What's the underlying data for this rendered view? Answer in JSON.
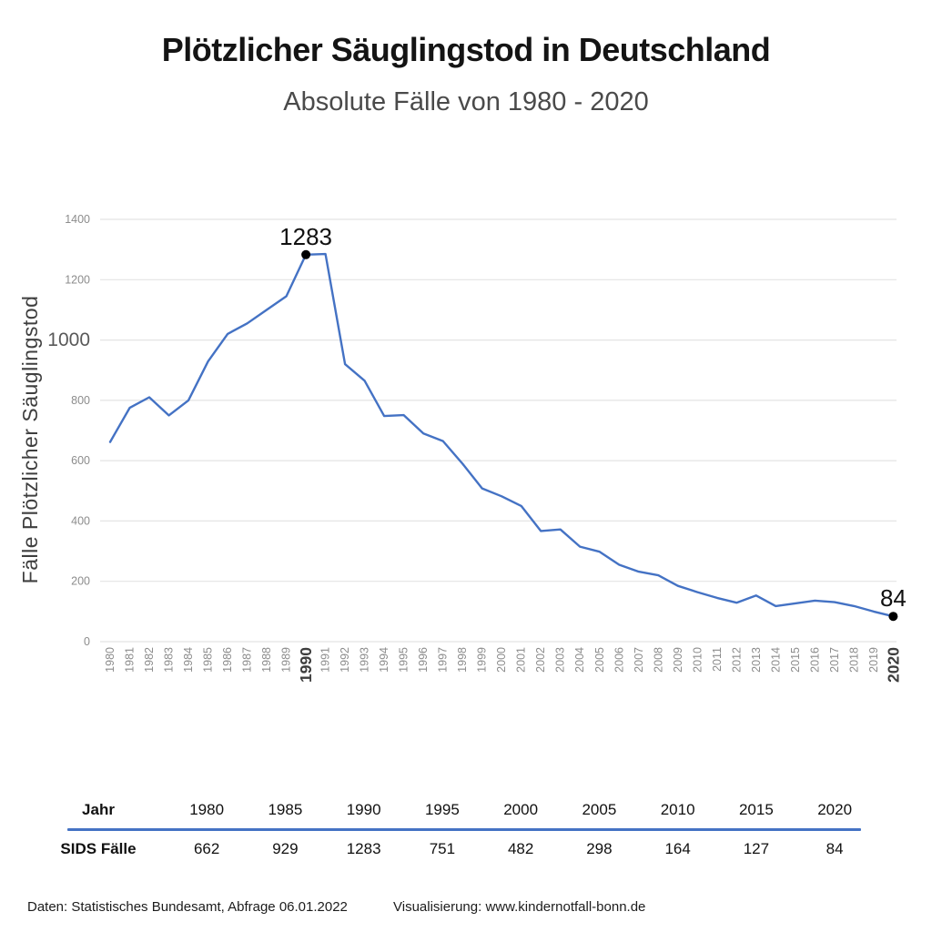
{
  "header": {
    "title": "Plötzlicher Säuglingstod in Deutschland",
    "subtitle": "Absolute Fälle von 1980 - 2020"
  },
  "chart_data": {
    "type": "line",
    "title": "Plötzlicher Säuglingstod in Deutschland",
    "subtitle": "Absolute Fälle von 1980 - 2020",
    "xlabel": "",
    "ylabel": "Fälle Plötzlicher Säuglingstod",
    "x": [
      1980,
      1981,
      1982,
      1983,
      1984,
      1985,
      1986,
      1987,
      1988,
      1989,
      1990,
      1991,
      1992,
      1993,
      1994,
      1995,
      1996,
      1997,
      1998,
      1999,
      2000,
      2001,
      2002,
      2003,
      2004,
      2005,
      2006,
      2007,
      2008,
      2009,
      2010,
      2011,
      2012,
      2013,
      2014,
      2015,
      2016,
      2017,
      2018,
      2019,
      2020
    ],
    "values": [
      662,
      775,
      810,
      750,
      800,
      929,
      1020,
      1055,
      1100,
      1145,
      1283,
      1285,
      920,
      865,
      748,
      751,
      690,
      665,
      590,
      508,
      482,
      450,
      367,
      372,
      315,
      298,
      255,
      232,
      220,
      185,
      164,
      145,
      129,
      153,
      118,
      127,
      136,
      131,
      118,
      100,
      84
    ],
    "xlim": [
      1980,
      2020
    ],
    "ylim": [
      0,
      1400
    ],
    "yticks": [
      0,
      200,
      400,
      600,
      800,
      1000,
      1200,
      1400
    ],
    "y_emphasized": 1000,
    "x_emphasized": [
      1990,
      2020
    ],
    "grid": true,
    "legend": "none",
    "line_color": "#4472C4",
    "marker_color": "#000000",
    "annotations": [
      {
        "x": 1990,
        "value": 1283,
        "label": "1283"
      },
      {
        "x": 2020,
        "value": 84,
        "label": "84"
      }
    ]
  },
  "table": {
    "header_label": "Jahr",
    "row_label": "SIDS Fälle",
    "years": [
      "1980",
      "1985",
      "1990",
      "1995",
      "2000",
      "2005",
      "2010",
      "2015",
      "2020"
    ],
    "values": [
      "662",
      "929",
      "1283",
      "751",
      "482",
      "298",
      "164",
      "127",
      "84"
    ]
  },
  "footer": {
    "source": "Daten: Statistisches Bundesamt, Abfrage 06.01.2022",
    "credit": "Visualisierung: www.kindernotfall-bonn.de"
  }
}
